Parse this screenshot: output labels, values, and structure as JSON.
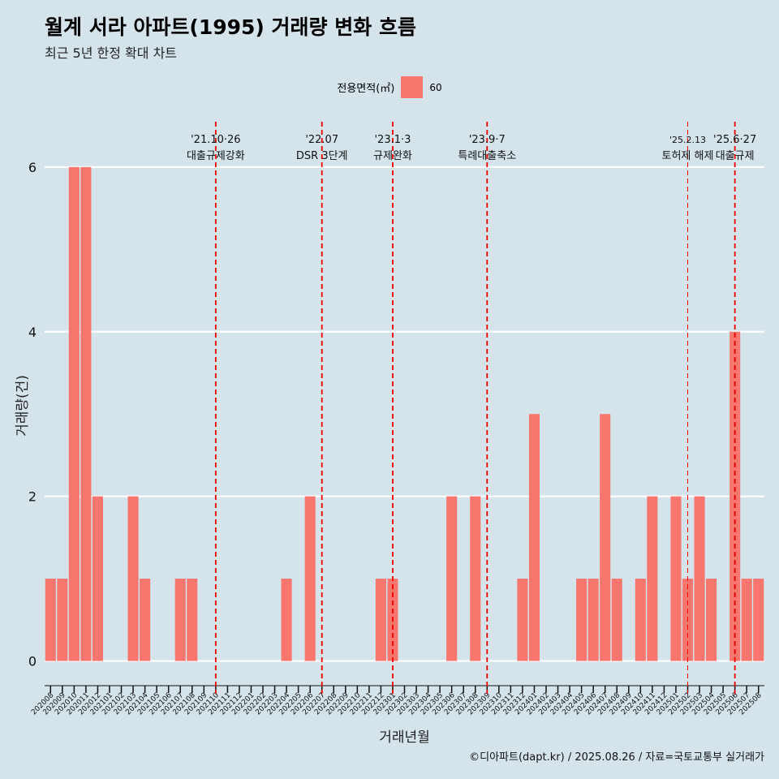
{
  "title": "월계 서라 아파트(1995) 거래량 변화 흐름",
  "subtitle": "최근 5년 한정 확대 차트",
  "legend": {
    "title": "전용면적(㎡)",
    "label": "60",
    "color": "#f8766d"
  },
  "caption": "©디아파트(dapt.kr) / 2025.08.26 / 자료=국토교통부 실거래가",
  "chart_data": {
    "type": "bar",
    "xlabel": "거래년월",
    "ylabel": "거래량(건)",
    "ylim": [
      -0.3,
      6.6
    ],
    "yticks": [
      0,
      2,
      4,
      6
    ],
    "grid": true,
    "legend_position": "top",
    "bar_color": "#f8766d",
    "categories": [
      "202008",
      "202009",
      "202010",
      "202011",
      "202012",
      "202101",
      "202102",
      "202103",
      "202104",
      "202105",
      "202106",
      "202107",
      "202108",
      "202109",
      "202110",
      "202111",
      "202112",
      "202201",
      "202202",
      "202203",
      "202204",
      "202205",
      "202206",
      "202207",
      "202208",
      "202209",
      "202210",
      "202211",
      "202212",
      "202301",
      "202302",
      "202303",
      "202304",
      "202305",
      "202306",
      "202307",
      "202308",
      "202309",
      "202310",
      "202311",
      "202312",
      "202401",
      "202402",
      "202403",
      "202404",
      "202405",
      "202406",
      "202407",
      "202408",
      "202409",
      "202410",
      "202411",
      "202412",
      "202501",
      "202502",
      "202503",
      "202504",
      "202505",
      "202506",
      "202507",
      "202508"
    ],
    "series": [
      {
        "name": "60",
        "values": [
          1,
          1,
          6,
          6,
          2,
          0,
          0,
          2,
          1,
          0,
          0,
          1,
          1,
          0,
          0,
          0,
          0,
          0,
          0,
          0,
          1,
          0,
          2,
          0,
          0,
          0,
          0,
          0,
          1,
          1,
          0,
          0,
          0,
          0,
          2,
          0,
          2,
          0,
          0,
          0,
          1,
          3,
          0,
          0,
          0,
          1,
          1,
          3,
          1,
          0,
          1,
          2,
          0,
          2,
          1,
          2,
          1,
          0,
          4,
          1,
          1
        ]
      }
    ],
    "events": [
      {
        "at": "202110",
        "date": "'21.10·26",
        "label": "대출규제강화",
        "style": "bold"
      },
      {
        "at": "202207",
        "date": "'22.07",
        "label": "DSR 3단계",
        "style": "bold"
      },
      {
        "at": "202301",
        "date": "'23.1·3",
        "label": "규제완화",
        "style": "bold"
      },
      {
        "at": "202309",
        "date": "'23.9·7",
        "label": "특례대출축소",
        "style": "bold"
      },
      {
        "at": "202502",
        "date": "'25.2.13",
        "label": "토허제 해제",
        "style": "thin"
      },
      {
        "at": "202506",
        "date": "'25.6·27",
        "label": "대출규제",
        "style": "bold"
      }
    ]
  }
}
